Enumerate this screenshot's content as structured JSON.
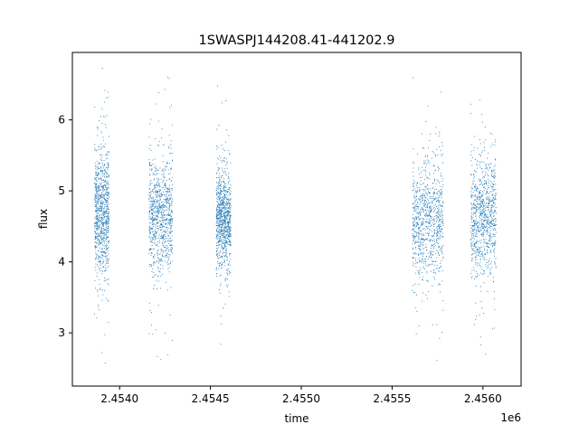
{
  "chart_data": {
    "type": "scatter",
    "title": "1SWASPJ144208.41-441202.9",
    "xlabel": "time",
    "ylabel": "flux",
    "x_offset_label": "1e6",
    "xlim": [
      2.45374,
      2.45621
    ],
    "ylim": [
      2.25,
      6.95
    ],
    "x_ticks": [
      2.454,
      2.4545,
      2.455,
      2.4555,
      2.456
    ],
    "x_tick_labels": [
      "2.4540",
      "2.4545",
      "2.4550",
      "2.4555",
      "2.4560"
    ],
    "y_ticks": [
      3,
      4,
      5,
      6
    ],
    "y_tick_labels": [
      "3",
      "4",
      "5",
      "6"
    ],
    "grid": false,
    "marker_color": "#1f77b4",
    "series": [
      {
        "clusters": [
          {
            "x_range": [
              2.45386,
              2.45394
            ],
            "y_center": 4.7,
            "y_spread": 0.45,
            "y_min": 2.5,
            "y_max": 6.75
          },
          {
            "x_range": [
              2.45416,
              2.45429
            ],
            "y_center": 4.65,
            "y_spread": 0.4,
            "y_min": 2.6,
            "y_max": 6.65
          },
          {
            "x_range": [
              2.45453,
              2.45461
            ],
            "y_center": 4.6,
            "y_spread": 0.35,
            "y_min": 2.5,
            "y_max": 6.65
          },
          {
            "x_range": [
              2.45561,
              2.45578
            ],
            "y_center": 4.6,
            "y_spread": 0.4,
            "y_min": 2.55,
            "y_max": 6.65
          },
          {
            "x_range": [
              2.45593,
              2.45607
            ],
            "y_center": 4.65,
            "y_spread": 0.4,
            "y_min": 2.5,
            "y_max": 6.4
          }
        ]
      }
    ]
  }
}
